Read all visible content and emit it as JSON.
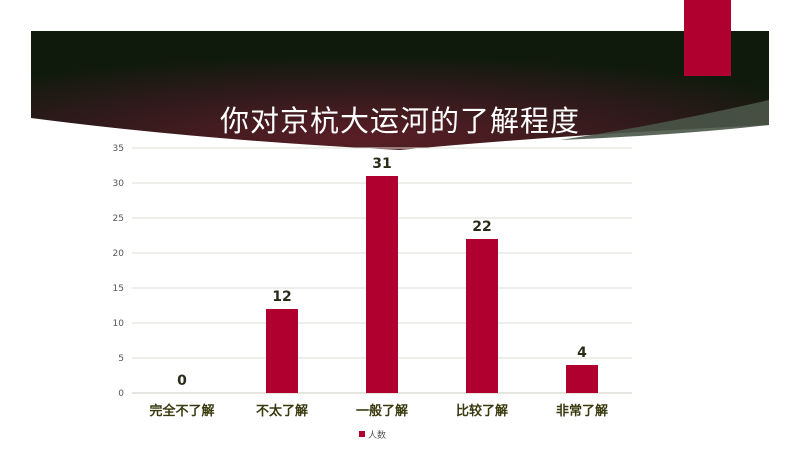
{
  "title": "你对京杭大运河的了解程度",
  "colors": {
    "bar": "#b0002f",
    "banner_dark": "#1a1414",
    "banner_mid": "#5a1e26",
    "accent": "#b0002f"
  },
  "chart_data": {
    "type": "bar",
    "title": "你对京杭大运河的了解程度",
    "categories": [
      "完全不了解",
      "不太了解",
      "一般了解",
      "比较了解",
      "非常了解"
    ],
    "series": [
      {
        "name": "人数",
        "values": [
          0,
          12,
          31,
          22,
          4
        ]
      }
    ],
    "ylim": [
      0,
      35
    ],
    "yticks": [
      0,
      5,
      10,
      15,
      20,
      25,
      30,
      35
    ],
    "grid": true,
    "legend": "bottom",
    "data_labels": true
  }
}
